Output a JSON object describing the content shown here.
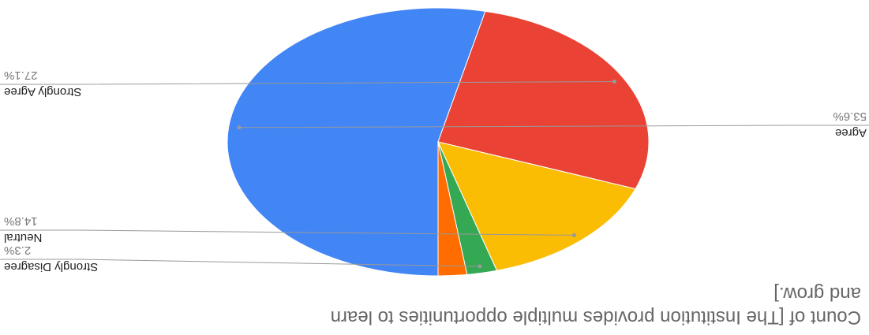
{
  "chart_data": {
    "type": "pie",
    "title_lines": [
      "Count of  [The Institution provides multiple opportunities to learn",
      "and grow.]"
    ],
    "slices": [
      {
        "label": "Agree",
        "value": 53.6,
        "value_label": "53.6%",
        "color": "#4285f4"
      },
      {
        "label": "Strongly Agree",
        "value": 27.1,
        "value_label": "27.1%",
        "color": "#ea4335"
      },
      {
        "label": "Neutral",
        "value": 14.8,
        "value_label": "14.8%",
        "color": "#fbbc04"
      },
      {
        "label": "Strongly Disagree",
        "value": 2.3,
        "value_label": "2.3%",
        "color": "#34a853"
      },
      {
        "label": "",
        "value": 2.2,
        "value_label": "",
        "color": "#ff6d01"
      }
    ],
    "legend": "none"
  }
}
